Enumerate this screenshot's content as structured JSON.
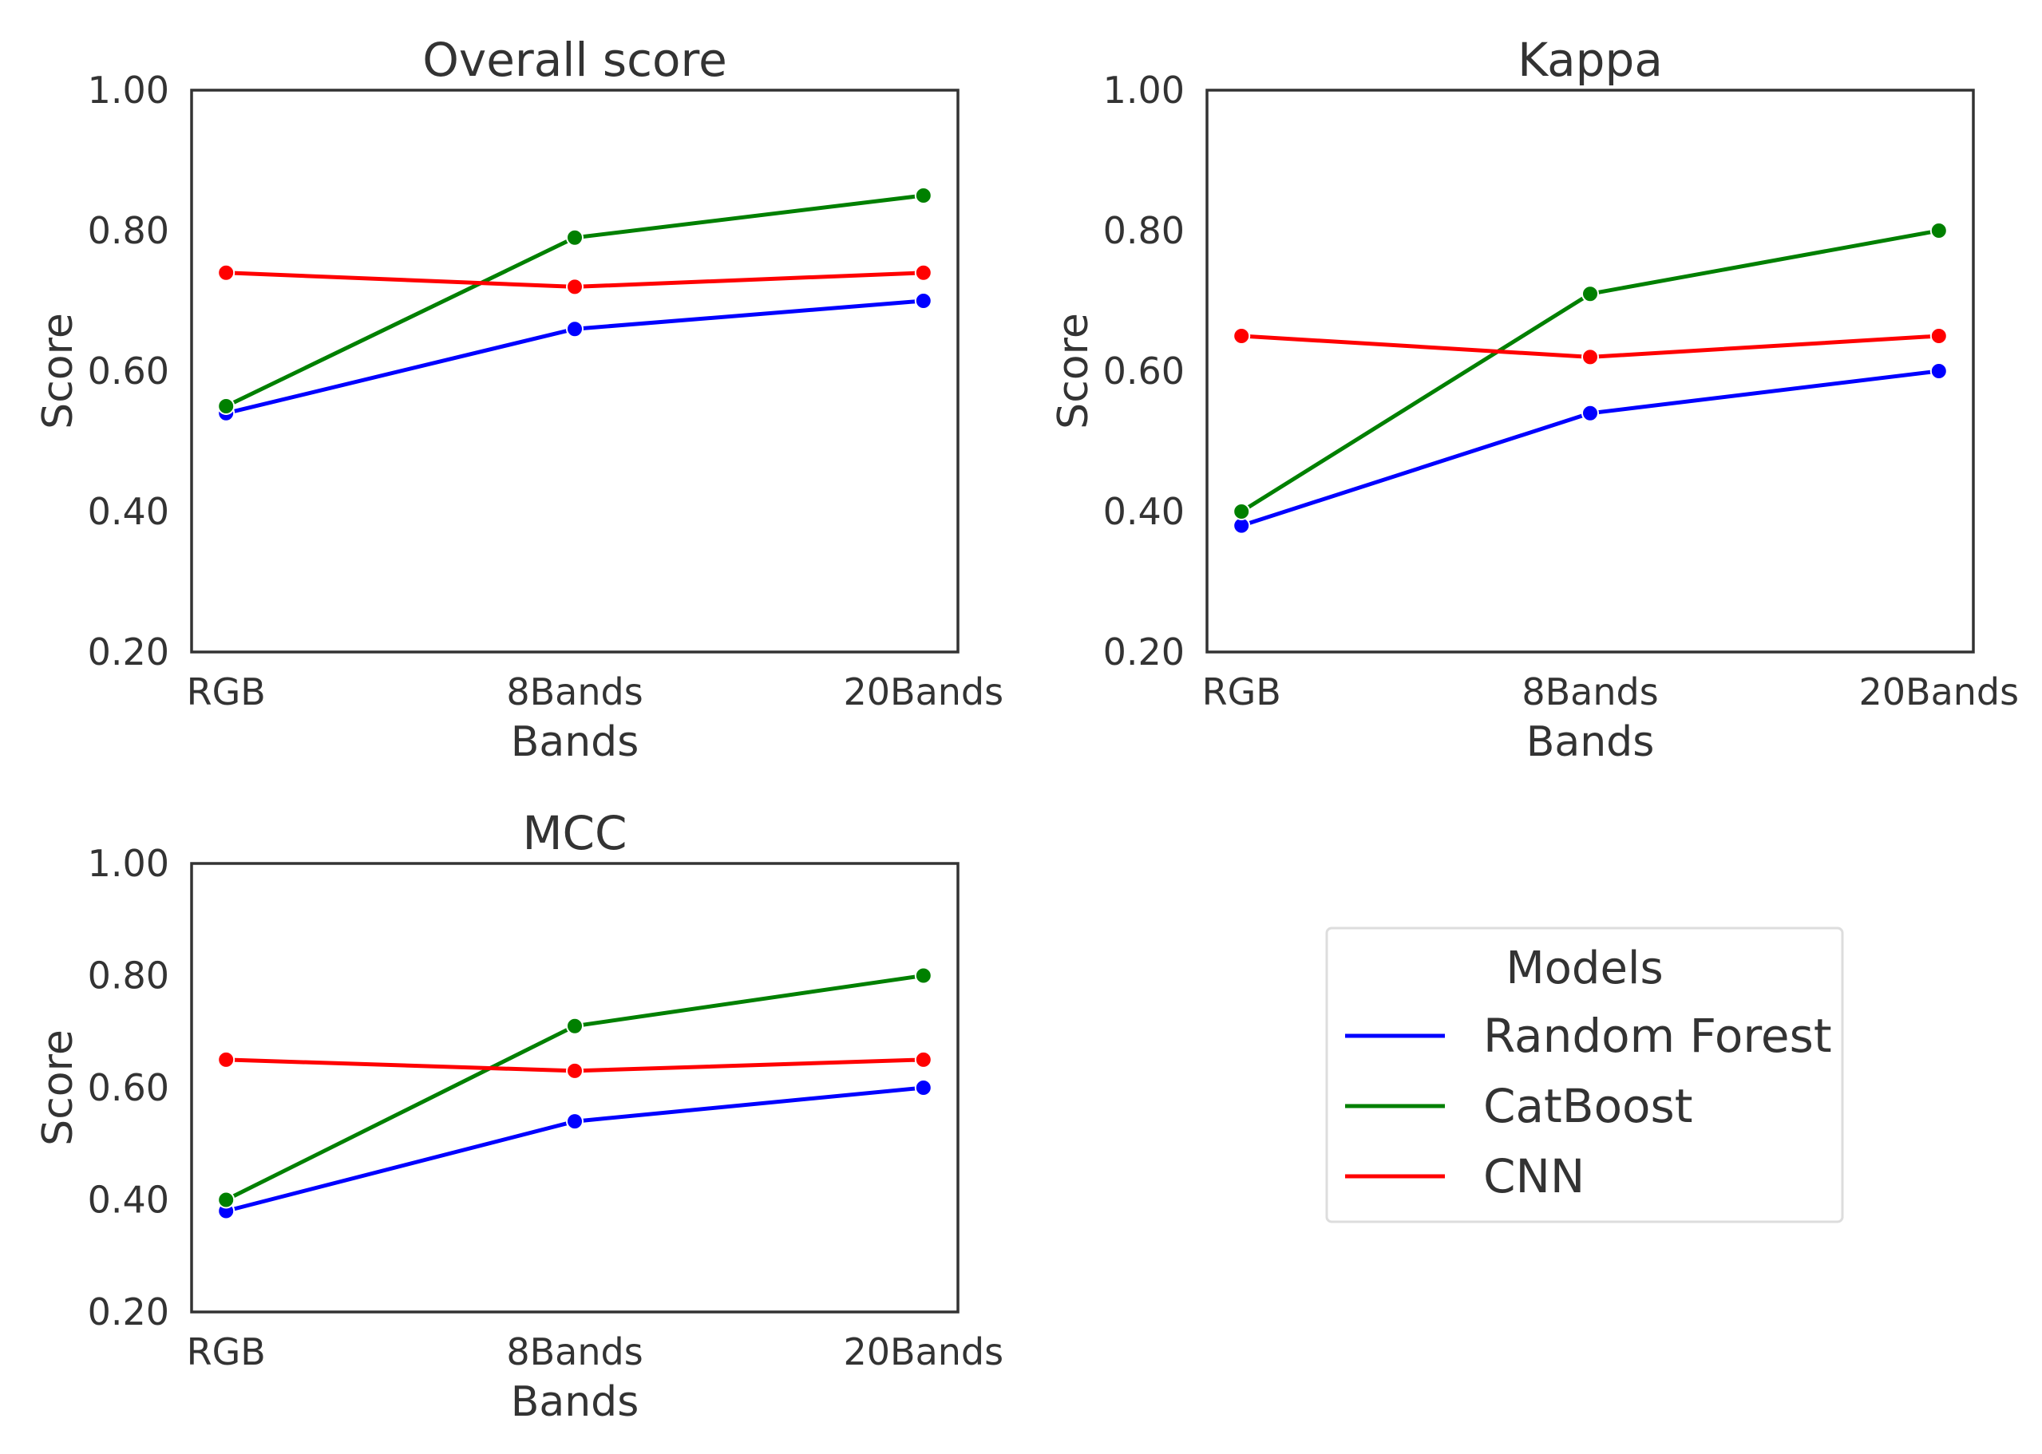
{
  "chart_data": [
    {
      "type": "line",
      "title": "Overall score",
      "xlabel": "Bands",
      "ylabel": "Score",
      "categories": [
        "RGB",
        "8Bands",
        "20Bands"
      ],
      "ylim": [
        0.2,
        1.0
      ],
      "yticks": [
        "0.20",
        "0.40",
        "0.60",
        "0.80",
        "1.00"
      ],
      "series": [
        {
          "name": "Random Forest",
          "color": "#0000ff",
          "values": [
            0.54,
            0.66,
            0.7
          ]
        },
        {
          "name": "CatBoost",
          "color": "#008000",
          "values": [
            0.55,
            0.79,
            0.85
          ]
        },
        {
          "name": "CNN",
          "color": "#ff0000",
          "values": [
            0.74,
            0.72,
            0.74
          ]
        }
      ]
    },
    {
      "type": "line",
      "title": "Kappa",
      "xlabel": "Bands",
      "ylabel": "Score",
      "categories": [
        "RGB",
        "8Bands",
        "20Bands"
      ],
      "ylim": [
        0.2,
        1.0
      ],
      "yticks": [
        "0.20",
        "0.40",
        "0.60",
        "0.80",
        "1.00"
      ],
      "series": [
        {
          "name": "Random Forest",
          "color": "#0000ff",
          "values": [
            0.38,
            0.54,
            0.6
          ]
        },
        {
          "name": "CatBoost",
          "color": "#008000",
          "values": [
            0.4,
            0.71,
            0.8
          ]
        },
        {
          "name": "CNN",
          "color": "#ff0000",
          "values": [
            0.65,
            0.62,
            0.65
          ]
        }
      ]
    },
    {
      "type": "line",
      "title": "MCC",
      "xlabel": "Bands",
      "ylabel": "Score",
      "categories": [
        "RGB",
        "8Bands",
        "20Bands"
      ],
      "ylim": [
        0.2,
        1.0
      ],
      "yticks": [
        "0.20",
        "0.40",
        "0.60",
        "0.80",
        "1.00"
      ],
      "series": [
        {
          "name": "Random Forest",
          "color": "#0000ff",
          "values": [
            0.38,
            0.54,
            0.6
          ]
        },
        {
          "name": "CatBoost",
          "color": "#008000",
          "values": [
            0.4,
            0.71,
            0.8
          ]
        },
        {
          "name": "CNN",
          "color": "#ff0000",
          "values": [
            0.65,
            0.63,
            0.65
          ]
        }
      ]
    }
  ],
  "legend": {
    "title": "Models",
    "placement": "bottom-right",
    "items": [
      {
        "label": "Random Forest",
        "color": "#0000ff"
      },
      {
        "label": "CatBoost",
        "color": "#008000"
      },
      {
        "label": "CNN",
        "color": "#ff0000"
      }
    ]
  }
}
